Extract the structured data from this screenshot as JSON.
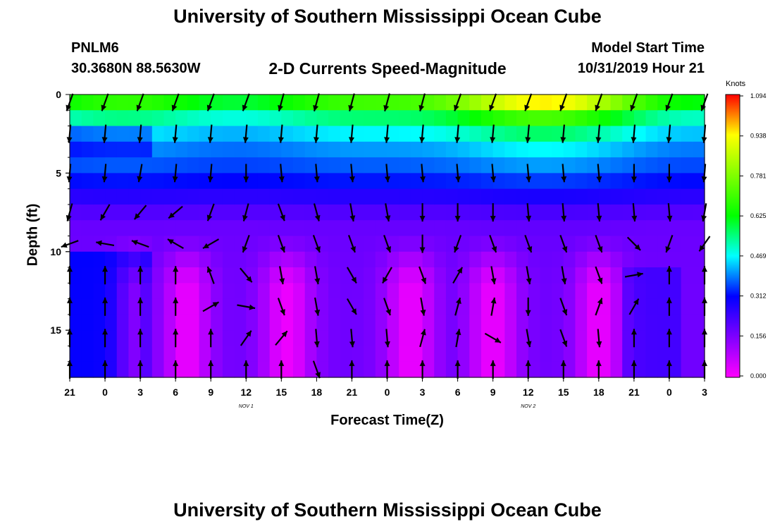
{
  "header": {
    "title": "University of Southern Mississippi Ocean Cube",
    "station_id": "PNLM6",
    "station_coords": "30.3680N 88.5630W",
    "plot_title": "2-D Currents Speed-Magnitude",
    "model_label": "Model Start Time",
    "model_date": "10/31/2019 Hour 21"
  },
  "footer": {
    "title": "University of Southern Mississippi Ocean Cube"
  },
  "chart_data": {
    "type": "heatmap",
    "xlabel": "Forecast Time(Z)",
    "ylabel": "Depth (ft)",
    "x_tick_labels": [
      "21",
      "0",
      "3",
      "6",
      "9",
      "12",
      "15",
      "18",
      "21",
      "0",
      "3",
      "6",
      "9",
      "12",
      "15",
      "18",
      "21",
      "0",
      "3"
    ],
    "x_date_labels": [
      {
        "label": "NOV 1",
        "at_hour": 15
      },
      {
        "label": "NOV 2",
        "at_hour": 39
      }
    ],
    "x_range_hours": [
      0,
      54
    ],
    "y_ticks": [
      0,
      5,
      10,
      15
    ],
    "y_range_ft": [
      0,
      18
    ],
    "colorbar": {
      "title": "Knots",
      "range": [
        0,
        1.094
      ],
      "tick_labels": [
        "1.094",
        "0.938",
        "0.781",
        "0.625",
        "0.469",
        "0.312",
        "0.156",
        "0.000"
      ]
    },
    "depths_ft": [
      0,
      1,
      2,
      3,
      4,
      5,
      6,
      7,
      8,
      9,
      10,
      11,
      12,
      13,
      14,
      15,
      16,
      17,
      18
    ],
    "surface_speed_range_knots": [
      0.72,
      1.09
    ],
    "bottom_speed_range_knots": [
      0.05,
      0.3
    ],
    "vectors": {
      "every_hours": 3,
      "depth_levels_ft": [
        0.5,
        2.5,
        5,
        7.5,
        9.5,
        11.5,
        13.5,
        15.5,
        17.5
      ],
      "direction_rows_deg": [
        [
          200,
          200,
          200,
          200,
          200,
          200,
          195,
          195,
          195,
          195,
          195,
          200,
          200,
          200,
          200,
          200,
          200,
          200,
          200
        ],
        [
          185,
          185,
          185,
          185,
          185,
          185,
          185,
          185,
          185,
          185,
          185,
          185,
          185,
          185,
          185,
          185,
          185,
          185,
          185
        ],
        [
          185,
          185,
          190,
          185,
          185,
          180,
          175,
          175,
          175,
          175,
          175,
          175,
          175,
          175,
          175,
          175,
          180,
          180,
          185
        ],
        [
          195,
          210,
          220,
          230,
          200,
          195,
          160,
          165,
          170,
          170,
          180,
          180,
          180,
          175,
          175,
          175,
          175,
          175,
          190
        ],
        [
          250,
          280,
          290,
          300,
          240,
          200,
          160,
          160,
          160,
          160,
          180,
          200,
          160,
          160,
          160,
          160,
          135,
          200,
          215
        ],
        [
          0,
          0,
          0,
          0,
          340,
          140,
          170,
          170,
          150,
          210,
          160,
          30,
          170,
          170,
          170,
          160,
          80,
          0,
          0
        ],
        [
          0,
          0,
          0,
          0,
          60,
          100,
          160,
          170,
          150,
          160,
          170,
          15,
          10,
          180,
          160,
          20,
          30,
          0,
          0
        ],
        [
          0,
          0,
          0,
          0,
          0,
          35,
          40,
          175,
          175,
          175,
          15,
          10,
          120,
          170,
          160,
          175,
          0,
          0,
          0
        ],
        [
          0,
          0,
          0,
          0,
          0,
          0,
          0,
          160,
          0,
          0,
          0,
          0,
          0,
          0,
          0,
          0,
          0,
          0,
          0
        ]
      ]
    }
  }
}
